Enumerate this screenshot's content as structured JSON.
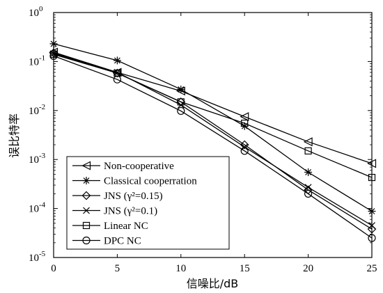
{
  "chart_data": {
    "type": "line",
    "title": "",
    "xlabel": "信噪比/dB",
    "ylabel": "误比特率",
    "yscale": "log",
    "x": [
      0,
      5,
      10,
      15,
      20,
      25
    ],
    "xlim": [
      0,
      25
    ],
    "ylim": [
      1e-05,
      1
    ],
    "x_ticks": [
      "0",
      "5",
      "10",
      "15",
      "20",
      "25"
    ],
    "y_ticks": [
      {
        "base": "10",
        "exp": "0"
      },
      {
        "base": "10",
        "exp": "-1"
      },
      {
        "base": "10",
        "exp": "-2"
      },
      {
        "base": "10",
        "exp": "-3"
      },
      {
        "base": "10",
        "exp": "-4"
      },
      {
        "base": "10",
        "exp": "-5"
      }
    ],
    "grid": false,
    "legend_position": "bottom-left",
    "series": [
      {
        "name": "Non-cooperative",
        "marker": "triangle-left",
        "values": [
          0.155,
          0.06,
          0.025,
          0.0075,
          0.0023,
          0.00083
        ]
      },
      {
        "name": "Classical cooperration",
        "marker": "asterisk",
        "values": [
          0.23,
          0.105,
          0.027,
          0.0048,
          0.00055,
          8.8e-05
        ]
      },
      {
        "name": "JNS (γ²=0.15)",
        "marker": "diamond",
        "values": [
          0.15,
          0.058,
          0.015,
          0.002,
          0.00024,
          3.8e-05
        ]
      },
      {
        "name": "JNS (γ²=0.1)",
        "marker": "x",
        "values": [
          0.145,
          0.06,
          0.013,
          0.0018,
          0.00027,
          4.5e-05
        ]
      },
      {
        "name": "Linear NC",
        "marker": "square",
        "values": [
          0.14,
          0.058,
          0.015,
          0.0055,
          0.0015,
          0.00043
        ]
      },
      {
        "name": "DPC NC",
        "marker": "circle",
        "values": [
          0.13,
          0.043,
          0.0098,
          0.0015,
          0.0002,
          2.5e-05
        ]
      }
    ]
  }
}
